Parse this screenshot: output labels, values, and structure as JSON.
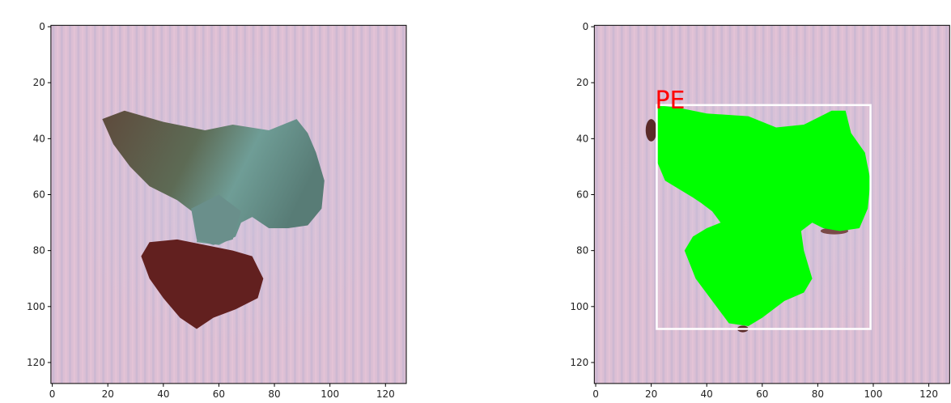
{
  "chart_data": [
    {
      "type": "image",
      "xlim": [
        -0.5,
        127.5
      ],
      "ylim": [
        127.5,
        -0.5
      ],
      "xticks": [
        0,
        20,
        40,
        60,
        80,
        100,
        120
      ],
      "yticks": [
        0,
        20,
        40,
        60,
        80,
        100,
        120
      ]
    },
    {
      "type": "image",
      "xlim": [
        -0.5,
        127.5
      ],
      "ylim": [
        127.5,
        -0.5
      ],
      "xticks": [
        0,
        20,
        40,
        60,
        80,
        100,
        120
      ],
      "yticks": [
        0,
        20,
        40,
        60,
        80,
        100,
        120
      ],
      "box": {
        "label": "PE",
        "x": [
          22,
          99
        ],
        "y": [
          28,
          108
        ],
        "color": "#ffffff",
        "label_color": "#ff0000"
      }
    }
  ]
}
